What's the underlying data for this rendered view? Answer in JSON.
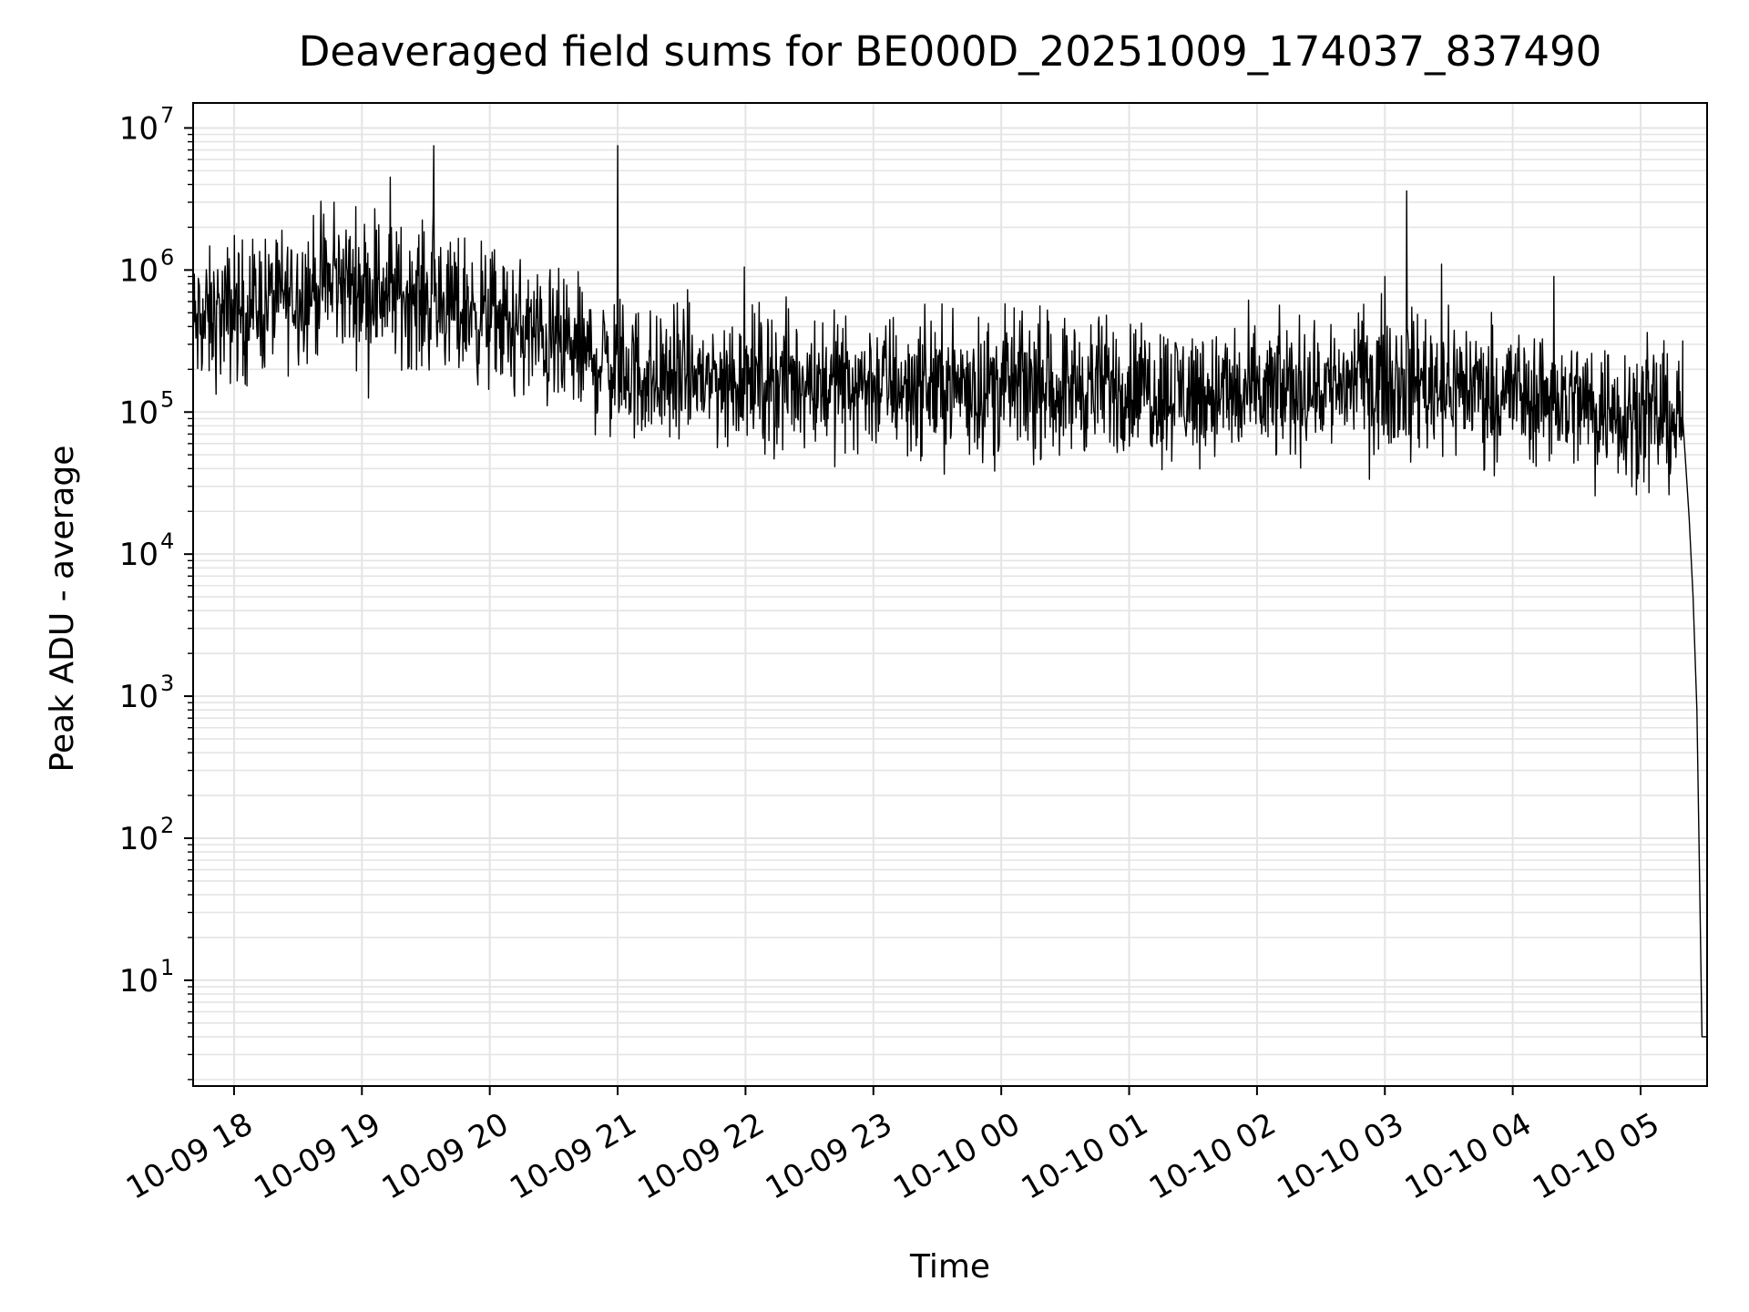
{
  "chart_data": {
    "type": "line",
    "title": "Deaveraged field sums for BE000D_20251009_174037_837490",
    "xlabel": "Time",
    "ylabel": "Peak ADU - average",
    "yscale": "log",
    "ylim": [
      1.8,
      15000000
    ],
    "xlim_hours": [
      -0.32,
      11.52
    ],
    "x_ticks": [
      {
        "label": "10-09 18",
        "hour": 0
      },
      {
        "label": "10-09 19",
        "hour": 1
      },
      {
        "label": "10-09 20",
        "hour": 2
      },
      {
        "label": "10-09 21",
        "hour": 3
      },
      {
        "label": "10-09 22",
        "hour": 4
      },
      {
        "label": "10-09 23",
        "hour": 5
      },
      {
        "label": "10-10 00",
        "hour": 6
      },
      {
        "label": "10-10 01",
        "hour": 7
      },
      {
        "label": "10-10 02",
        "hour": 8
      },
      {
        "label": "10-10 03",
        "hour": 9
      },
      {
        "label": "10-10 04",
        "hour": 10
      },
      {
        "label": "10-10 05",
        "hour": 11
      }
    ],
    "y_ticks": [
      {
        "base": "10",
        "exp": "1",
        "value": 10
      },
      {
        "base": "10",
        "exp": "2",
        "value": 100
      },
      {
        "base": "10",
        "exp": "3",
        "value": 1000
      },
      {
        "base": "10",
        "exp": "4",
        "value": 10000
      },
      {
        "base": "10",
        "exp": "5",
        "value": 100000
      },
      {
        "base": "10",
        "exp": "6",
        "value": 1000000
      },
      {
        "base": "10",
        "exp": "7",
        "value": 10000000
      }
    ],
    "grid": true,
    "series": [
      {
        "name": "field sums",
        "color": "#000000",
        "baseline_hours": [
          -0.32,
          0.0,
          0.8,
          1.8,
          2.6,
          3.2,
          5.0,
          7.0,
          8.0,
          9.0,
          10.0,
          11.3
        ],
        "baseline_values": [
          400000,
          500000,
          850000,
          550000,
          280000,
          180000,
          160000,
          150000,
          130000,
          180000,
          140000,
          90000
        ],
        "spikes": [
          {
            "hour": 0.0,
            "value": 1750000
          },
          {
            "hour": 0.78,
            "value": 3000000
          },
          {
            "hour": 1.1,
            "value": 2700000
          },
          {
            "hour": 1.22,
            "value": 4500000
          },
          {
            "hour": 1.56,
            "value": 7500000
          },
          {
            "hour": 3.0,
            "value": 7500000
          },
          {
            "hour": 3.99,
            "value": 1050000
          },
          {
            "hour": 9.0,
            "value": 900000
          },
          {
            "hour": 9.17,
            "value": 3600000
          },
          {
            "hour": 9.44,
            "value": 1100000
          },
          {
            "hour": 10.32,
            "value": 900000
          }
        ],
        "dropoff": [
          {
            "hour": 11.33,
            "value": 90000
          },
          {
            "hour": 11.38,
            "value": 18000
          },
          {
            "hour": 11.41,
            "value": 5000
          },
          {
            "hour": 11.44,
            "value": 800
          },
          {
            "hour": 11.46,
            "value": 60
          },
          {
            "hour": 11.48,
            "value": 4
          },
          {
            "hour": 11.52,
            "value": 4
          }
        ]
      }
    ]
  }
}
